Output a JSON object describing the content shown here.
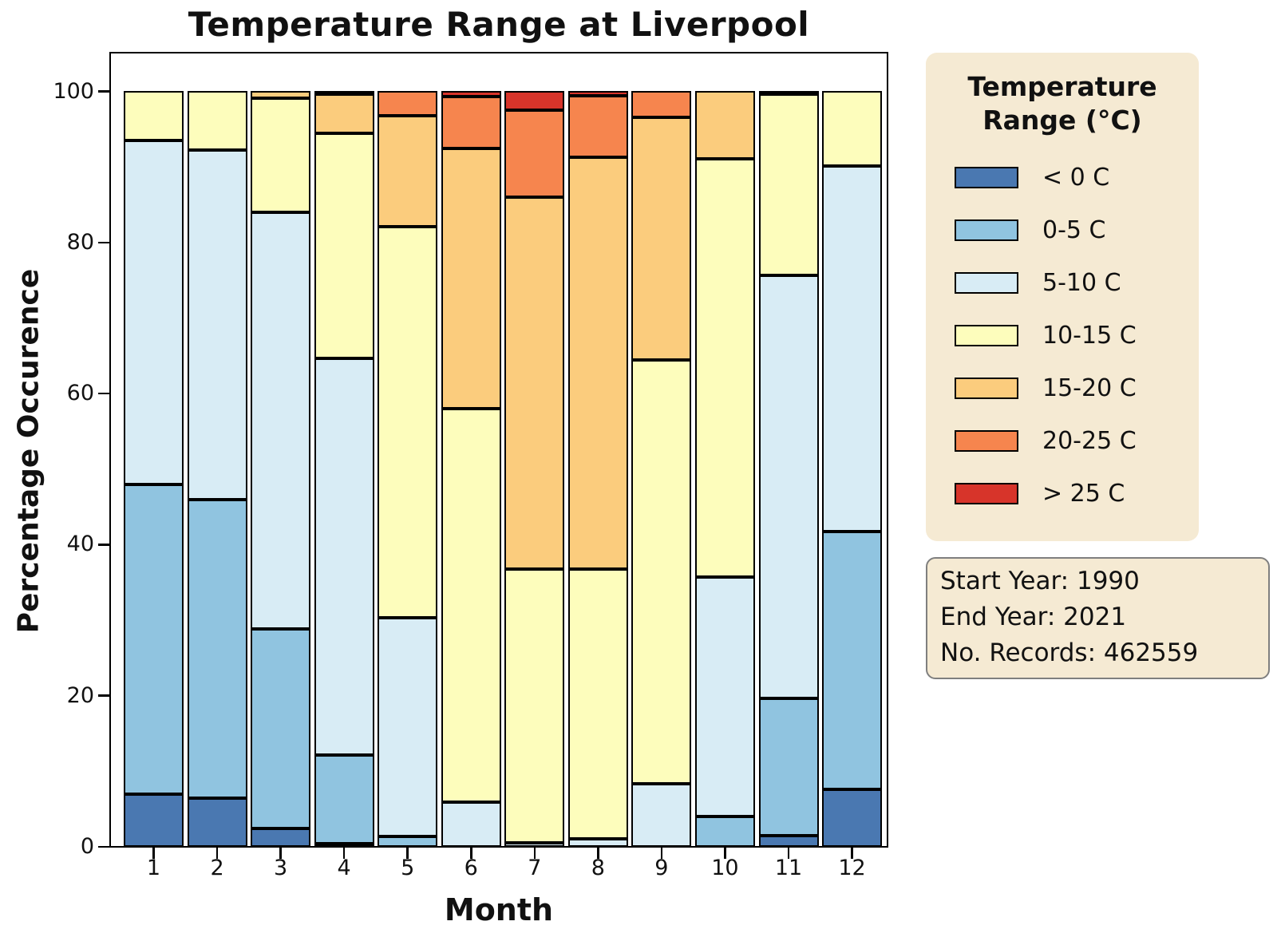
{
  "title": "Temperature Range at Liverpool",
  "axes": {
    "x_label": "Month",
    "y_label": "Percentage Occurence"
  },
  "legend": {
    "title_line1": "Temperature",
    "title_line2": "Range (°C)",
    "background": "#f5ead3"
  },
  "info_box": {
    "lines": [
      "Start Year: 1990",
      "End Year: 2021",
      "No. Records: 462559"
    ],
    "background": "#f5ead3",
    "border_color": "#7f7f7f"
  },
  "chart_data": {
    "type": "bar",
    "subtype": "stacked-percentage",
    "title": "Temperature Range at Liverpool",
    "xlabel": "Month",
    "ylabel": "Percentage Occurence",
    "categories": [
      "1",
      "2",
      "3",
      "4",
      "5",
      "6",
      "7",
      "8",
      "9",
      "10",
      "11",
      "12"
    ],
    "yticks": [
      0,
      20,
      40,
      60,
      80,
      100
    ],
    "ylim": [
      0,
      100
    ],
    "grid": false,
    "legend_position": "right",
    "bar_edge_color": "#000000",
    "series": [
      {
        "name": "< 0 C",
        "color": "#4a78b1",
        "values": [
          7.0,
          6.4,
          2.4,
          0.4,
          0,
          0,
          0,
          0,
          0,
          0,
          1.5,
          7.6
        ]
      },
      {
        "name": "0-5 C",
        "color": "#90c4e0",
        "values": [
          40.9,
          39.5,
          26.4,
          11.7,
          1.4,
          0,
          0,
          0,
          0,
          4.0,
          18.1,
          34.1
        ]
      },
      {
        "name": "5-10 C",
        "color": "#d8ecf5",
        "values": [
          45.6,
          46.3,
          55.2,
          52.5,
          28.9,
          5.9,
          0.5,
          1.1,
          8.3,
          31.7,
          56.0,
          48.4
        ]
      },
      {
        "name": "10-15 C",
        "color": "#fdfdbc",
        "values": [
          6.5,
          7.8,
          15.0,
          29.8,
          51.7,
          52.1,
          36.2,
          35.7,
          56.1,
          55.3,
          24.0,
          9.9
        ]
      },
      {
        "name": "15-20 C",
        "color": "#fbcc7d",
        "values": [
          0,
          0,
          1.0,
          5.2,
          14.7,
          34.4,
          49.3,
          54.4,
          32.1,
          9.0,
          0.4,
          0
        ]
      },
      {
        "name": "20-25 C",
        "color": "#f6854e",
        "values": [
          0,
          0,
          0,
          0.4,
          3.3,
          6.9,
          11.5,
          8.2,
          3.5,
          0,
          0,
          0
        ]
      },
      {
        "name": "> 25 C",
        "color": "#d7342a",
        "values": [
          0,
          0,
          0,
          0,
          0,
          0.7,
          2.5,
          0.6,
          0,
          0,
          0,
          0
        ]
      }
    ]
  }
}
